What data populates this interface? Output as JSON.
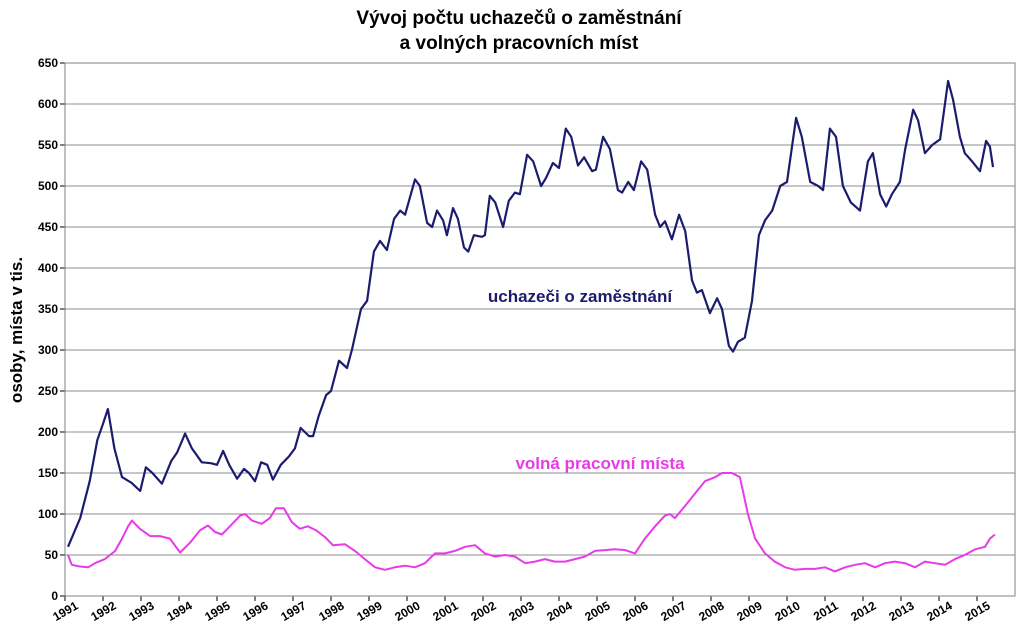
{
  "chart_data": {
    "type": "line",
    "title": [
      "Vývoj počtu uchazečů o zaměstnání",
      "a volných pracovních míst"
    ],
    "y_label": "osoby, místa v tis.",
    "xlim": [
      1991,
      2016
    ],
    "xticks": [
      1991,
      1992,
      1993,
      1994,
      1995,
      1996,
      1997,
      1998,
      1999,
      2000,
      2001,
      2002,
      2003,
      2004,
      2005,
      2006,
      2007,
      2008,
      2009,
      2010,
      2011,
      2012,
      2013,
      2014,
      2015
    ],
    "ylim": [
      0,
      650
    ],
    "yticks": [
      0,
      50,
      100,
      150,
      200,
      250,
      300,
      350,
      400,
      450,
      500,
      550,
      600,
      650
    ],
    "grid": true,
    "series": [
      {
        "name": "uchazeči o zaměstnání",
        "color": "#1c1c6e",
        "x": [
          1991.08,
          1991.4,
          1991.65,
          1991.85,
          1992.0,
          1992.13,
          1992.3,
          1992.5,
          1992.75,
          1992.98,
          1993.13,
          1993.3,
          1993.55,
          1993.8,
          1993.95,
          1994.16,
          1994.34,
          1994.6,
          1994.84,
          1995.0,
          1995.16,
          1995.32,
          1995.53,
          1995.71,
          1995.84,
          1996.0,
          1996.16,
          1996.32,
          1996.47,
          1996.68,
          1996.89,
          1997.05,
          1997.2,
          1997.42,
          1997.53,
          1997.68,
          1997.87,
          1998.0,
          1998.21,
          1998.42,
          1998.55,
          1998.79,
          1998.95,
          1999.13,
          1999.29,
          1999.47,
          1999.66,
          1999.82,
          1999.95,
          2000.21,
          2000.34,
          2000.53,
          2000.66,
          2000.79,
          2000.95,
          2001.05,
          2001.21,
          2001.34,
          2001.5,
          2001.61,
          2001.76,
          2001.97,
          2002.05,
          2002.18,
          2002.32,
          2002.53,
          2002.68,
          2002.84,
          2002.97,
          2003.16,
          2003.32,
          2003.53,
          2003.66,
          2003.84,
          2004.0,
          2004.18,
          2004.32,
          2004.5,
          2004.66,
          2004.87,
          2004.97,
          2005.16,
          2005.34,
          2005.55,
          2005.66,
          2005.82,
          2005.97,
          2006.16,
          2006.32,
          2006.53,
          2006.66,
          2006.79,
          2006.97,
          2007.16,
          2007.32,
          2007.5,
          2007.63,
          2007.76,
          2007.97,
          2008.16,
          2008.29,
          2008.47,
          2008.58,
          2008.71,
          2008.89,
          2009.08,
          2009.26,
          2009.42,
          2009.61,
          2009.82,
          2010.0,
          2010.24,
          2010.39,
          2010.61,
          2010.82,
          2010.95,
          2011.13,
          2011.29,
          2011.47,
          2011.68,
          2011.92,
          2012.13,
          2012.26,
          2012.45,
          2012.61,
          2012.76,
          2012.97,
          2013.11,
          2013.32,
          2013.45,
          2013.63,
          2013.82,
          2014.03,
          2014.24,
          2014.37,
          2014.55,
          2014.68,
          2014.87,
          2015.08,
          2015.24,
          2015.34,
          2015.42
        ],
        "values": [
          60,
          95,
          140,
          190,
          210,
          228,
          180,
          145,
          138,
          128,
          157,
          150,
          137,
          165,
          175,
          198,
          180,
          163,
          162,
          160,
          177,
          160,
          143,
          155,
          150,
          140,
          163,
          160,
          142,
          160,
          170,
          180,
          205,
          195,
          195,
          220,
          245,
          250,
          287,
          278,
          300,
          350,
          360,
          420,
          433,
          422,
          460,
          470,
          465,
          508,
          500,
          455,
          450,
          470,
          458,
          440,
          473,
          460,
          425,
          420,
          440,
          438,
          440,
          488,
          480,
          450,
          482,
          492,
          490,
          538,
          530,
          500,
          510,
          528,
          522,
          570,
          560,
          525,
          535,
          518,
          520,
          560,
          545,
          495,
          492,
          505,
          495,
          530,
          520,
          465,
          450,
          457,
          435,
          465,
          445,
          385,
          370,
          373,
          345,
          363,
          350,
          305,
          298,
          310,
          315,
          360,
          440,
          458,
          470,
          500,
          505,
          583,
          560,
          505,
          500,
          495,
          570,
          560,
          500,
          480,
          470,
          530,
          540,
          490,
          475,
          490,
          505,
          545,
          593,
          580,
          540,
          550,
          557,
          628,
          605,
          560,
          540,
          530,
          518,
          555,
          548,
          523
        ]
      },
      {
        "name": "volná pracovní místa",
        "color": "#e83be8",
        "x": [
          1991.08,
          1991.18,
          1991.39,
          1991.61,
          1991.79,
          1992.05,
          1992.32,
          1992.5,
          1992.66,
          1992.76,
          1992.97,
          1993.24,
          1993.5,
          1993.76,
          1994.03,
          1994.29,
          1994.55,
          1994.76,
          1994.95,
          1995.13,
          1995.34,
          1995.61,
          1995.74,
          1995.92,
          1996.18,
          1996.39,
          1996.55,
          1996.76,
          1996.97,
          1997.18,
          1997.39,
          1997.61,
          1997.84,
          1998.05,
          1998.37,
          1998.63,
          1998.89,
          1999.16,
          1999.42,
          1999.68,
          1999.95,
          2000.21,
          2000.47,
          2000.74,
          2001.0,
          2001.26,
          2001.53,
          2001.79,
          2002.05,
          2002.32,
          2002.58,
          2002.84,
          2003.11,
          2003.37,
          2003.63,
          2003.89,
          2004.16,
          2004.42,
          2004.68,
          2004.95,
          2005.21,
          2005.47,
          2005.74,
          2006.0,
          2006.26,
          2006.53,
          2006.79,
          2006.92,
          2007.05,
          2007.32,
          2007.58,
          2007.84,
          2008.11,
          2008.29,
          2008.55,
          2008.76,
          2008.97,
          2009.16,
          2009.42,
          2009.68,
          2009.95,
          2010.21,
          2010.47,
          2010.74,
          2011.0,
          2011.26,
          2011.53,
          2011.79,
          2012.05,
          2012.32,
          2012.58,
          2012.84,
          2013.11,
          2013.37,
          2013.63,
          2013.89,
          2014.16,
          2014.42,
          2014.68,
          2014.95,
          2015.21,
          2015.34,
          2015.47
        ],
        "values": [
          50,
          38,
          36,
          35,
          40,
          45,
          55,
          70,
          85,
          92,
          82,
          73,
          73,
          70,
          53,
          65,
          80,
          86,
          78,
          75,
          85,
          98,
          100,
          92,
          88,
          95,
          107,
          107,
          90,
          82,
          85,
          80,
          72,
          62,
          63,
          55,
          45,
          35,
          32,
          35,
          37,
          35,
          40,
          52,
          52,
          55,
          60,
          62,
          52,
          48,
          50,
          48,
          40,
          42,
          45,
          42,
          42,
          45,
          48,
          55,
          56,
          57,
          56,
          52,
          70,
          85,
          98,
          100,
          95,
          110,
          125,
          140,
          145,
          150,
          150,
          145,
          100,
          70,
          52,
          42,
          35,
          32,
          33,
          33,
          35,
          30,
          35,
          38,
          40,
          35,
          40,
          42,
          40,
          35,
          42,
          40,
          38,
          45,
          50,
          57,
          60,
          70,
          75
        ]
      }
    ]
  }
}
